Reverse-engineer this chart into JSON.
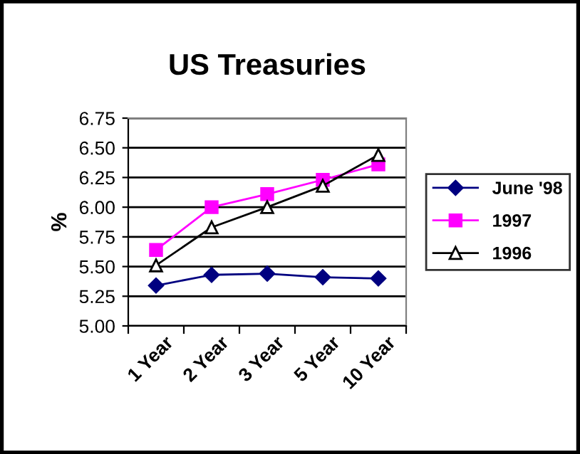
{
  "chart_data": {
    "type": "line",
    "title": "US Treasuries",
    "ylabel": "%",
    "categories": [
      "1 Year",
      "2 Year",
      "3 Year",
      "5 Year",
      "10 Year"
    ],
    "series": [
      {
        "name": "June '98",
        "color": "#000080",
        "marker": "diamond",
        "values": [
          5.34,
          5.43,
          5.44,
          5.41,
          5.4
        ]
      },
      {
        "name": "1997",
        "color": "#ff00ff",
        "marker": "square",
        "values": [
          5.64,
          6.0,
          6.11,
          6.23,
          6.36
        ]
      },
      {
        "name": "1996",
        "color": "#000000",
        "marker": "triangle",
        "values": [
          5.51,
          5.83,
          6.0,
          6.18,
          6.44
        ]
      }
    ],
    "ylim": [
      5.0,
      6.75
    ],
    "yticks": [
      {
        "value": 5.0,
        "label": "5.00"
      },
      {
        "value": 5.25,
        "label": "5.25"
      },
      {
        "value": 5.5,
        "label": "5.50"
      },
      {
        "value": 5.75,
        "label": "5.75"
      },
      {
        "value": 6.0,
        "label": "6.00"
      },
      {
        "value": 6.25,
        "label": "6.25"
      },
      {
        "value": 6.5,
        "label": "6.50"
      },
      {
        "value": 6.75,
        "label": "6.75"
      }
    ],
    "grid": "y",
    "legend": "right",
    "line_style": "solid"
  }
}
